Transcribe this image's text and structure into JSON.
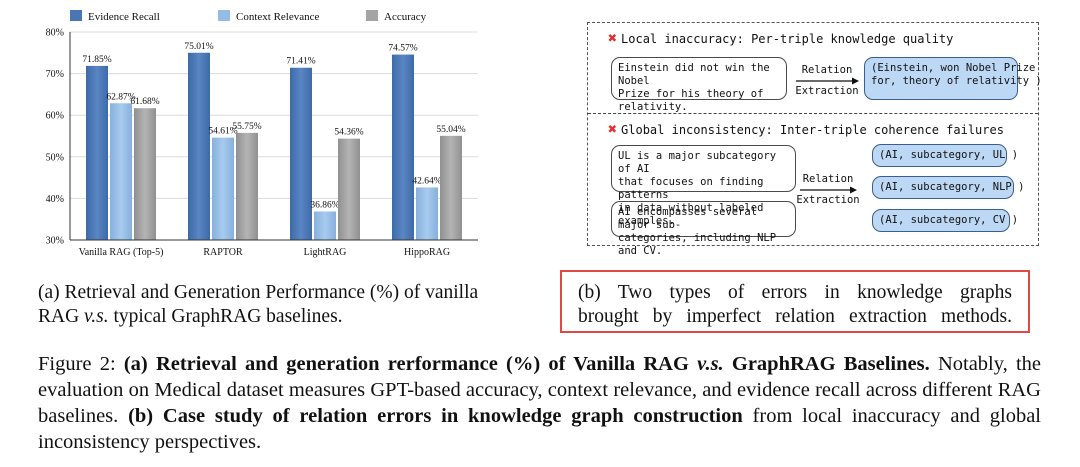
{
  "chart_data": {
    "type": "bar",
    "categories": [
      "Vanilla RAG (Top-5)",
      "RAPTOR",
      "LightRAG",
      "HippoRAG"
    ],
    "series": [
      {
        "name": "Evidence Recall",
        "values": [
          71.85,
          75.01,
          71.41,
          74.57
        ],
        "labels": [
          "71.85%",
          "75.01%",
          "71.41%",
          "74.57%"
        ],
        "color": "#4a76b4"
      },
      {
        "name": "Context Relevance",
        "values": [
          62.87,
          54.61,
          36.86,
          42.64
        ],
        "labels": [
          "62.87%",
          "54.61%",
          "36.86%",
          "42.64%"
        ],
        "color": "#94bce4"
      },
      {
        "name": "Accuracy",
        "values": [
          61.68,
          55.75,
          54.36,
          55.04
        ],
        "labels": [
          "61.68%",
          "55.75%",
          "54.36%",
          "55.04%"
        ],
        "color": "#a4a4a4"
      }
    ],
    "ylim": [
      30,
      80
    ],
    "yticks": [
      30,
      40,
      50,
      60,
      70,
      80
    ],
    "ytick_labels": [
      "30%",
      "40%",
      "50%",
      "60%",
      "70%",
      "80%"
    ],
    "legend_position": "top",
    "grid": true
  },
  "caption_a": "(a) Retrieval and Generation Performance (%) of vanilla RAG v.s. typical GraphRAG baselines.",
  "panel_b": {
    "local_title": "Local inaccuracy: Per-triple knowledge quality",
    "local_text_line1": "Einstein did not win the Nobel",
    "local_text_line2": "Prize for his theory of relativity.",
    "local_arrow_line1": "Relation",
    "local_arrow_line2": "Extraction",
    "local_triple_line1": "(Einstein, won Nobel Prize",
    "local_triple_line2": "for, theory of relativity )",
    "global_title": "Global inconsistency: Inter-triple coherence failures",
    "global_text1_line1": "UL is a major subcategory of AI",
    "global_text1_line2": "that focuses on finding patterns",
    "global_text1_line3": "in data without labeled examples.",
    "global_text2_line1": "AI encompasses several major sub-",
    "global_text2_line2": "categories, including NLP and CV.",
    "global_arrow_line1": "Relation",
    "global_arrow_line2": "Extraction",
    "triple1": "(AI, subcategory, UL )",
    "triple2": "(AI, subcategory, NLP )",
    "triple3": "(AI, subcategory, CV )"
  },
  "caption_b_line1": "(b) Two types of errors in knowledge graphs",
  "caption_b_line2": "brought by imperfect relation extraction methods.",
  "figure_caption": {
    "label": "Figure 2:",
    "bold_a": "(a) Retrieval and generation rerformance (%) of Vanilla RAG v.s. GraphRAG Baselines.",
    "text_a": "Notably, the evaluation on Medical dataset measures GPT-based accuracy, context relevance, and evidence recall across different RAG baselines.",
    "bold_b": "(b) Case study of relation errors in knowledge graph construction",
    "text_b": "from local inaccuracy and global inconsistency perspectives."
  }
}
